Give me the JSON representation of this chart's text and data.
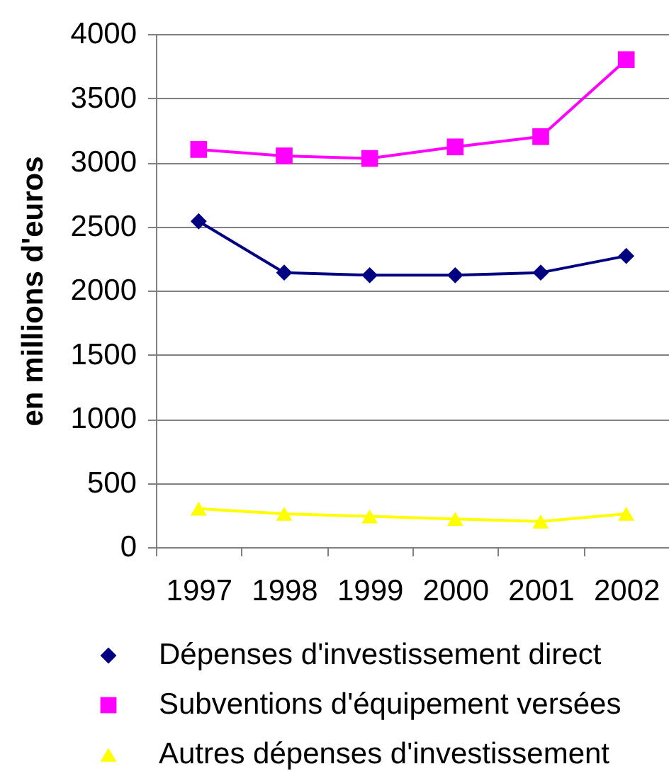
{
  "chart_data": {
    "type": "line",
    "ylabel": "en millions d'euros",
    "categories": [
      "1997",
      "1998",
      "1999",
      "2000",
      "2001",
      "2002"
    ],
    "series": [
      {
        "name": "Dépenses d'investissement direct",
        "color": "#000080",
        "marker": "diamond",
        "values": [
          2540,
          2140,
          2120,
          2120,
          2140,
          2270
        ]
      },
      {
        "name": "Subventions d'équipement versées",
        "color": "#ff00ff",
        "marker": "square",
        "values": [
          3100,
          3050,
          3030,
          3120,
          3200,
          3800
        ]
      },
      {
        "name": "Autres dépenses d'investissement",
        "color": "#ffff00",
        "marker": "triangle",
        "values": [
          300,
          260,
          240,
          220,
          200,
          260
        ]
      }
    ],
    "ylim": [
      0,
      4000
    ],
    "yticks": [
      0,
      500,
      1000,
      1500,
      2000,
      2500,
      3000,
      3500,
      4000
    ],
    "grid": "y",
    "legend": "bottom",
    "line_style": "solid"
  }
}
